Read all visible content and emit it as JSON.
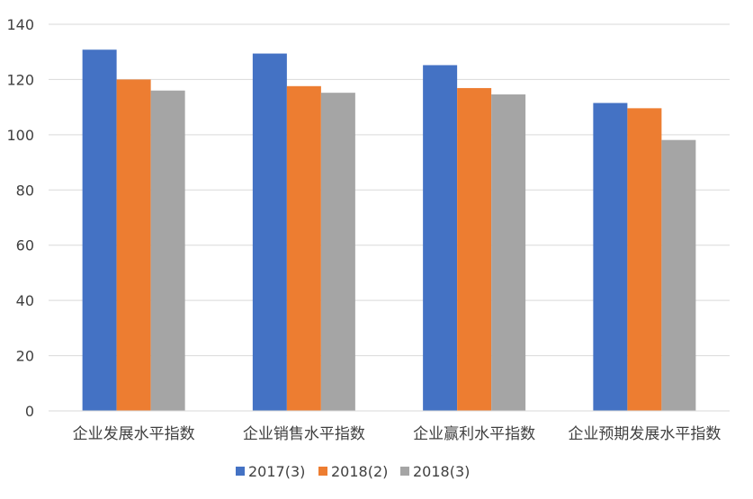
{
  "chart_data": {
    "type": "bar",
    "title": "",
    "xlabel": "",
    "ylabel": "",
    "ylim": [
      0,
      140
    ],
    "yticks": [
      0,
      20,
      40,
      60,
      80,
      100,
      120,
      140
    ],
    "grid": true,
    "legend_position": "bottom",
    "categories": [
      "企业发展水平指数",
      "企业销售水平指数",
      "企业赢利水平指数",
      "企业预期发展水平指数"
    ],
    "series": [
      {
        "name": "2017(3)",
        "color": "#4472C4",
        "values": [
          130.8,
          129.4,
          125.2,
          111.5
        ]
      },
      {
        "name": "2018(2)",
        "color": "#ED7D31",
        "values": [
          120.0,
          117.6,
          116.9,
          109.6
        ]
      },
      {
        "name": "2018(3)",
        "color": "#A5A5A5",
        "values": [
          116.0,
          115.2,
          114.6,
          98.1
        ]
      }
    ]
  }
}
